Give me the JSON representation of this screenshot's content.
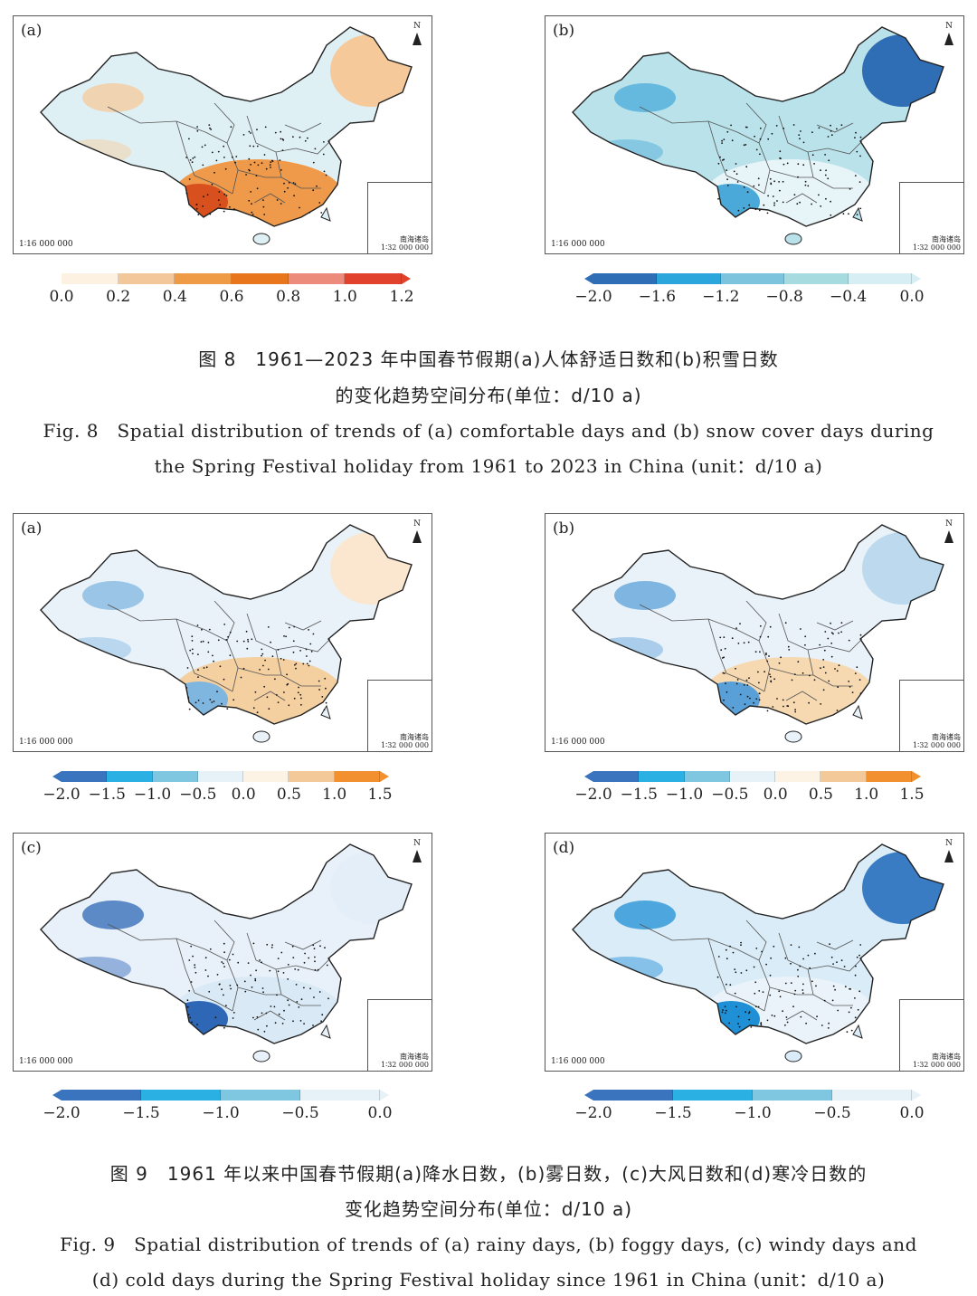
{
  "figure8": {
    "panels": [
      {
        "label": "(a)",
        "scale": "1∶16 000 000",
        "north": "N",
        "inset_label": "南海诸岛",
        "inset_scale": "1∶32 000 000"
      },
      {
        "label": "(b)",
        "scale": "1∶16 000 000",
        "north": "N",
        "inset_label": "南海诸岛",
        "inset_scale": "1∶32 000 000"
      }
    ],
    "colorbar_a": {
      "ticks": [
        "0.0",
        "0.2",
        "0.4",
        "0.6",
        "0.8",
        "1.0",
        "1.2"
      ],
      "colors": [
        "#fdf1e2",
        "#f4c79a",
        "#ef9a45",
        "#e8761c",
        "#ec8a7c",
        "#e0422c"
      ]
    },
    "colorbar_b": {
      "ticks": [
        "−2.0",
        "−1.6",
        "−1.2",
        "−0.8",
        "−0.4",
        "0.0"
      ],
      "colors": [
        "#2f6db5",
        "#2ba6dc",
        "#7cc3dd",
        "#a6dbe0",
        "#d6eef4"
      ]
    },
    "caption_zh_line1": "图 8　1961—2023 年中国春节假期(a)人体舒适日数和(b)积雪日数",
    "caption_zh_line2": "的变化趋势空间分布(单位：d/10 a)",
    "caption_en_line1": "Fig. 8　Spatial distribution of trends of (a) comfortable days and (b) snow cover days during",
    "caption_en_line2": "the Spring Festival holiday from 1961 to 2023 in China (unit：d/10 a)"
  },
  "figure9": {
    "panels": [
      {
        "label": "(a)",
        "scale": "1∶16 000 000",
        "north": "N",
        "inset_label": "南海诸岛",
        "inset_scale": "1∶32 000 000"
      },
      {
        "label": "(b)",
        "scale": "1∶16 000 000",
        "north": "N",
        "inset_label": "南海诸岛",
        "inset_scale": "1∶32 000 000"
      },
      {
        "label": "(c)",
        "scale": "1∶16 000 000",
        "north": "N",
        "inset_label": "南海诸岛",
        "inset_scale": "1∶32 000 000"
      },
      {
        "label": "(d)",
        "scale": "1∶16 000 000",
        "north": "N",
        "inset_label": "南海诸岛",
        "inset_scale": "1∶32 000 000"
      }
    ],
    "colorbar_ab": {
      "ticks": [
        "−2.0",
        "−1.5",
        "−1.0",
        "−0.5",
        "0.0",
        "0.5",
        "1.0",
        "1.5"
      ],
      "colors": [
        "#3a74bf",
        "#2bb0e4",
        "#7fc6e0",
        "#e6f1f8",
        "#fdf3e4",
        "#f3c99a",
        "#f2902f"
      ]
    },
    "colorbar_cd": {
      "ticks": [
        "−2.0",
        "−1.5",
        "−1.0",
        "−0.5",
        "0.0"
      ],
      "colors": [
        "#3a74bf",
        "#2bb0e4",
        "#7fc6e0",
        "#e6f1f8"
      ]
    },
    "caption_zh_line1": "图 9　1961 年以来中国春节假期(a)降水日数，(b)雾日数，(c)大风日数和(d)寒冷日数的",
    "caption_zh_line2": "变化趋势空间分布(单位：d/10 a)",
    "caption_en_line1": "Fig. 9　Spatial distribution of trends of (a) rainy days, (b) foggy days, (c) windy days and",
    "caption_en_line2": "(d) cold days during the Spring Festival holiday since 1961 in China (unit：d/10 a)"
  },
  "map_fills": {
    "f8a": {
      "base": "#dff0f5",
      "south": "#ee9a4a",
      "southwest": "#d9501f",
      "accent": "#f6c99a"
    },
    "f8b": {
      "base": "#b9e2ea",
      "south": "#e7f4f8",
      "northeast": "#2f6db5",
      "accent": "#4aa9d9"
    },
    "f9a": {
      "base": "#e9f2f9",
      "south": "#f4cfa0",
      "northeast": "#fbe7d0",
      "accent": "#7fb6e0"
    },
    "f9b": {
      "base": "#eaf2f9",
      "south": "#f6d9b1",
      "northeast": "#bcd9ee",
      "accent": "#5aa0d8"
    },
    "f9c": {
      "base": "#e8f1f9",
      "south": "#d9eaf6",
      "northeast": "#e3eef8",
      "accent": "#2e67b5"
    },
    "f9d": {
      "base": "#d9ecf7",
      "south": "#eaf3f9",
      "northeast": "#3a7cc4",
      "accent": "#1f8fd6"
    }
  }
}
